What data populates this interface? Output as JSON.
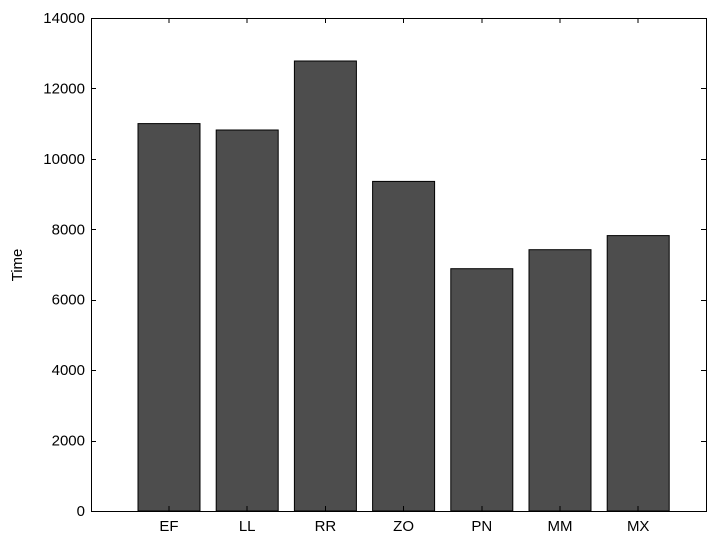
{
  "chart_data": {
    "type": "bar",
    "title": "",
    "xlabel": "",
    "ylabel": "Time",
    "categories": [
      "EF",
      "LL",
      "RR",
      "ZO",
      "PN",
      "MM",
      "MX"
    ],
    "values": [
      11000,
      10820,
      12780,
      9360,
      6880,
      7420,
      7820
    ],
    "ylim": [
      0,
      14000
    ],
    "yticks": [
      0,
      2000,
      4000,
      6000,
      8000,
      10000,
      12000,
      14000
    ],
    "grid": false,
    "legend": "none",
    "bar_color": "#4d4d4d"
  }
}
